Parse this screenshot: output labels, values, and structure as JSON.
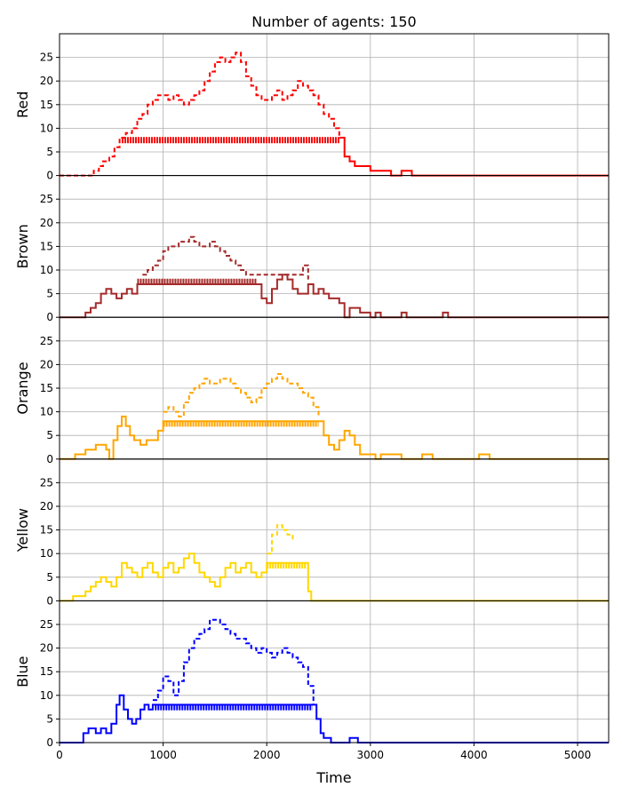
{
  "chart_data": {
    "type": "line",
    "title": "Number of agents: 150",
    "xlabel": "Time",
    "xlim": [
      0,
      5300
    ],
    "ylim": [
      0,
      30
    ],
    "x_ticks": [
      0,
      1000,
      2000,
      3000,
      4000,
      5000
    ],
    "y_ticks": [
      0,
      5,
      10,
      15,
      20,
      25
    ],
    "grid": true,
    "panels": [
      {
        "ylabel": "Red",
        "color": "#ff0000",
        "dashed_series": [
          [
            0,
            0
          ],
          [
            280,
            0
          ],
          [
            330,
            1
          ],
          [
            380,
            2
          ],
          [
            420,
            3
          ],
          [
            480,
            4
          ],
          [
            530,
            6
          ],
          [
            580,
            8
          ],
          [
            640,
            9
          ],
          [
            700,
            10
          ],
          [
            750,
            12
          ],
          [
            800,
            13
          ],
          [
            850,
            15
          ],
          [
            900,
            16
          ],
          [
            950,
            17
          ],
          [
            1000,
            17
          ],
          [
            1050,
            16
          ],
          [
            1100,
            17
          ],
          [
            1150,
            16
          ],
          [
            1200,
            15
          ],
          [
            1250,
            16
          ],
          [
            1300,
            17
          ],
          [
            1350,
            18
          ],
          [
            1400,
            20
          ],
          [
            1450,
            22
          ],
          [
            1500,
            24
          ],
          [
            1550,
            25
          ],
          [
            1600,
            24
          ],
          [
            1650,
            25
          ],
          [
            1700,
            26
          ],
          [
            1750,
            24
          ],
          [
            1800,
            21
          ],
          [
            1850,
            19
          ],
          [
            1900,
            17
          ],
          [
            1950,
            16
          ],
          [
            2000,
            16
          ],
          [
            2050,
            17
          ],
          [
            2100,
            18
          ],
          [
            2150,
            16
          ],
          [
            2200,
            17
          ],
          [
            2250,
            18
          ],
          [
            2300,
            20
          ],
          [
            2350,
            19
          ],
          [
            2400,
            18
          ],
          [
            2450,
            17
          ],
          [
            2500,
            15
          ],
          [
            2550,
            13
          ],
          [
            2600,
            12
          ],
          [
            2650,
            10
          ],
          [
            2700,
            8
          ]
        ],
        "band": {
          "x_start": 600,
          "x_end": 2700,
          "value": 7.5
        },
        "solid_series": [
          [
            2700,
            8
          ],
          [
            2750,
            4
          ],
          [
            2800,
            3
          ],
          [
            2850,
            2
          ],
          [
            2950,
            2
          ],
          [
            3000,
            1
          ],
          [
            3150,
            1
          ],
          [
            3200,
            0
          ],
          [
            3300,
            1
          ],
          [
            3400,
            0
          ],
          [
            5300,
            0
          ]
        ]
      },
      {
        "ylabel": "Brown",
        "color": "#a52a2a",
        "dashed_series": [
          [
            800,
            9
          ],
          [
            850,
            10
          ],
          [
            900,
            11
          ],
          [
            950,
            12
          ],
          [
            1000,
            14
          ],
          [
            1050,
            15
          ],
          [
            1100,
            15
          ],
          [
            1150,
            16
          ],
          [
            1200,
            16
          ],
          [
            1250,
            17
          ],
          [
            1300,
            16
          ],
          [
            1350,
            15
          ],
          [
            1400,
            15
          ],
          [
            1450,
            16
          ],
          [
            1500,
            15
          ],
          [
            1550,
            14
          ],
          [
            1600,
            13
          ],
          [
            1650,
            12
          ],
          [
            1700,
            11
          ],
          [
            1750,
            10
          ],
          [
            1800,
            9
          ],
          [
            2300,
            9
          ],
          [
            2350,
            11
          ],
          [
            2400,
            8
          ]
        ],
        "band": {
          "x_start": 750,
          "x_end": 1900,
          "value": 7.5
        },
        "solid_series": [
          [
            0,
            0
          ],
          [
            200,
            0
          ],
          [
            250,
            1
          ],
          [
            300,
            2
          ],
          [
            350,
            3
          ],
          [
            400,
            5
          ],
          [
            450,
            6
          ],
          [
            500,
            5
          ],
          [
            550,
            4
          ],
          [
            600,
            5
          ],
          [
            650,
            6
          ],
          [
            700,
            5
          ],
          [
            750,
            7
          ],
          [
            1900,
            7
          ],
          [
            1950,
            4
          ],
          [
            2000,
            3
          ],
          [
            2050,
            6
          ],
          [
            2100,
            8
          ],
          [
            2150,
            9
          ],
          [
            2200,
            8
          ],
          [
            2250,
            6
          ],
          [
            2300,
            5
          ],
          [
            2400,
            7
          ],
          [
            2450,
            5
          ],
          [
            2500,
            6
          ],
          [
            2550,
            5
          ],
          [
            2600,
            4
          ],
          [
            2700,
            3
          ],
          [
            2750,
            0
          ],
          [
            2800,
            2
          ],
          [
            2900,
            1
          ],
          [
            3000,
            0
          ],
          [
            3050,
            1
          ],
          [
            3100,
            0
          ],
          [
            3300,
            1
          ],
          [
            3350,
            0
          ],
          [
            3700,
            1
          ],
          [
            3750,
            0
          ],
          [
            5300,
            0
          ]
        ]
      },
      {
        "ylabel": "Orange",
        "color": "#ffa500",
        "dashed_series": [
          [
            1000,
            10
          ],
          [
            1050,
            11
          ],
          [
            1100,
            10
          ],
          [
            1150,
            9
          ],
          [
            1200,
            12
          ],
          [
            1250,
            14
          ],
          [
            1300,
            15
          ],
          [
            1350,
            16
          ],
          [
            1400,
            17
          ],
          [
            1450,
            16
          ],
          [
            1500,
            16
          ],
          [
            1550,
            17
          ],
          [
            1600,
            17
          ],
          [
            1650,
            16
          ],
          [
            1700,
            15
          ],
          [
            1750,
            14
          ],
          [
            1800,
            13
          ],
          [
            1850,
            12
          ],
          [
            1900,
            13
          ],
          [
            1950,
            15
          ],
          [
            2000,
            16
          ],
          [
            2050,
            17
          ],
          [
            2100,
            18
          ],
          [
            2150,
            17
          ],
          [
            2200,
            16
          ],
          [
            2250,
            16
          ],
          [
            2300,
            15
          ],
          [
            2350,
            14
          ],
          [
            2400,
            13
          ],
          [
            2450,
            11
          ],
          [
            2500,
            9
          ]
        ],
        "band": {
          "x_start": 1000,
          "x_end": 2500,
          "value": 7.5
        },
        "solid_series": [
          [
            0,
            0
          ],
          [
            150,
            1
          ],
          [
            250,
            2
          ],
          [
            350,
            3
          ],
          [
            450,
            2
          ],
          [
            480,
            0
          ],
          [
            520,
            4
          ],
          [
            560,
            7
          ],
          [
            600,
            9
          ],
          [
            640,
            7
          ],
          [
            680,
            5
          ],
          [
            720,
            4
          ],
          [
            780,
            3
          ],
          [
            840,
            4
          ],
          [
            900,
            4
          ],
          [
            950,
            6
          ],
          [
            1000,
            8
          ],
          [
            2500,
            8
          ],
          [
            2550,
            5
          ],
          [
            2600,
            3
          ],
          [
            2650,
            2
          ],
          [
            2700,
            4
          ],
          [
            2750,
            6
          ],
          [
            2800,
            5
          ],
          [
            2850,
            3
          ],
          [
            2900,
            1
          ],
          [
            3000,
            1
          ],
          [
            3050,
            0
          ],
          [
            3100,
            1
          ],
          [
            3300,
            0
          ],
          [
            3500,
            1
          ],
          [
            3600,
            0
          ],
          [
            4050,
            1
          ],
          [
            4150,
            0
          ],
          [
            5300,
            0
          ]
        ]
      },
      {
        "ylabel": "Yellow",
        "color": "#ffd700",
        "dashed_series": [
          [
            2000,
            10
          ],
          [
            2050,
            14
          ],
          [
            2100,
            16
          ],
          [
            2150,
            15
          ],
          [
            2200,
            14
          ],
          [
            2250,
            13
          ]
        ],
        "band": {
          "x_start": 2000,
          "x_end": 2380,
          "value": 7.5
        },
        "solid_series": [
          [
            0,
            0
          ],
          [
            130,
            1
          ],
          [
            250,
            2
          ],
          [
            300,
            3
          ],
          [
            350,
            4
          ],
          [
            400,
            5
          ],
          [
            450,
            4
          ],
          [
            500,
            3
          ],
          [
            550,
            5
          ],
          [
            600,
            8
          ],
          [
            650,
            7
          ],
          [
            700,
            6
          ],
          [
            750,
            5
          ],
          [
            800,
            7
          ],
          [
            850,
            8
          ],
          [
            900,
            6
          ],
          [
            950,
            5
          ],
          [
            1000,
            7
          ],
          [
            1050,
            8
          ],
          [
            1100,
            6
          ],
          [
            1150,
            7
          ],
          [
            1200,
            9
          ],
          [
            1250,
            10
          ],
          [
            1300,
            8
          ],
          [
            1350,
            6
          ],
          [
            1400,
            5
          ],
          [
            1450,
            4
          ],
          [
            1500,
            3
          ],
          [
            1550,
            5
          ],
          [
            1600,
            7
          ],
          [
            1650,
            8
          ],
          [
            1700,
            6
          ],
          [
            1750,
            7
          ],
          [
            1800,
            8
          ],
          [
            1850,
            6
          ],
          [
            1900,
            5
          ],
          [
            1950,
            6
          ],
          [
            2000,
            8
          ],
          [
            2380,
            8
          ],
          [
            2400,
            2
          ],
          [
            2430,
            0
          ],
          [
            5300,
            0
          ]
        ]
      },
      {
        "ylabel": "Blue",
        "color": "#0000ff",
        "dashed_series": [
          [
            900,
            9
          ],
          [
            950,
            11
          ],
          [
            1000,
            14
          ],
          [
            1050,
            13
          ],
          [
            1100,
            10
          ],
          [
            1150,
            13
          ],
          [
            1200,
            17
          ],
          [
            1250,
            20
          ],
          [
            1300,
            22
          ],
          [
            1350,
            23
          ],
          [
            1400,
            24
          ],
          [
            1450,
            26
          ],
          [
            1500,
            26
          ],
          [
            1550,
            25
          ],
          [
            1600,
            24
          ],
          [
            1650,
            23
          ],
          [
            1700,
            22
          ],
          [
            1750,
            22
          ],
          [
            1800,
            21
          ],
          [
            1850,
            20
          ],
          [
            1900,
            19
          ],
          [
            1950,
            20
          ],
          [
            2000,
            19
          ],
          [
            2050,
            18
          ],
          [
            2100,
            19
          ],
          [
            2150,
            20
          ],
          [
            2200,
            19
          ],
          [
            2250,
            18
          ],
          [
            2300,
            17
          ],
          [
            2350,
            16
          ],
          [
            2400,
            12
          ],
          [
            2450,
            8
          ]
        ],
        "band": {
          "x_start": 920,
          "x_end": 2440,
          "value": 7.5
        },
        "solid_series": [
          [
            0,
            0
          ],
          [
            200,
            0
          ],
          [
            230,
            2
          ],
          [
            280,
            3
          ],
          [
            350,
            2
          ],
          [
            400,
            3
          ],
          [
            450,
            2
          ],
          [
            500,
            4
          ],
          [
            550,
            8
          ],
          [
            580,
            10
          ],
          [
            620,
            7
          ],
          [
            660,
            5
          ],
          [
            700,
            4
          ],
          [
            740,
            5
          ],
          [
            780,
            7
          ],
          [
            820,
            8
          ],
          [
            860,
            7
          ],
          [
            900,
            8
          ],
          [
            2440,
            8
          ],
          [
            2480,
            5
          ],
          [
            2520,
            2
          ],
          [
            2550,
            1
          ],
          [
            2620,
            0
          ],
          [
            2800,
            1
          ],
          [
            2880,
            0
          ],
          [
            5300,
            0
          ]
        ]
      }
    ]
  }
}
